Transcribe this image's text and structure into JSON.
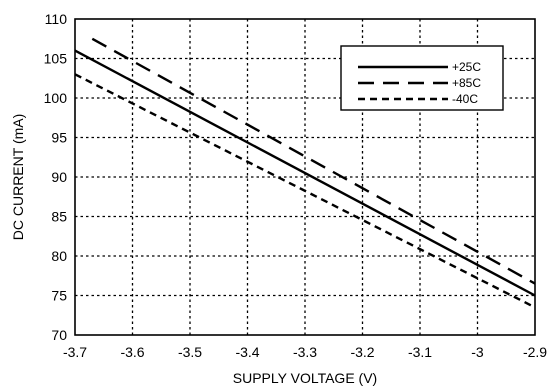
{
  "chart_data": {
    "type": "line",
    "title": "",
    "xlabel": "SUPPLY VOLTAGE (V)",
    "ylabel": "DC CURRENT (mA)",
    "xlim": [
      -3.7,
      -2.9
    ],
    "ylim": [
      70,
      110
    ],
    "xticks": [
      "-3.7",
      "-3.6",
      "-3.5",
      "-3.4",
      "-3.3",
      "-3.2",
      "-3.1",
      "-3",
      "-2.9"
    ],
    "yticks": [
      "70",
      "75",
      "80",
      "85",
      "90",
      "95",
      "100",
      "105",
      "110"
    ],
    "grid": true,
    "legend_position": "top-right",
    "series": [
      {
        "name": "+25C",
        "line_style": "solid",
        "x": [
          -3.7,
          -2.9
        ],
        "y": [
          106,
          75
        ]
      },
      {
        "name": "+85C",
        "line_style": "long-dash",
        "x": [
          -3.67,
          -2.9
        ],
        "y": [
          107.5,
          76.5
        ]
      },
      {
        "name": "-40C",
        "line_style": "short-dash",
        "x": [
          -3.7,
          -2.9
        ],
        "y": [
          103,
          73.5
        ]
      }
    ]
  }
}
